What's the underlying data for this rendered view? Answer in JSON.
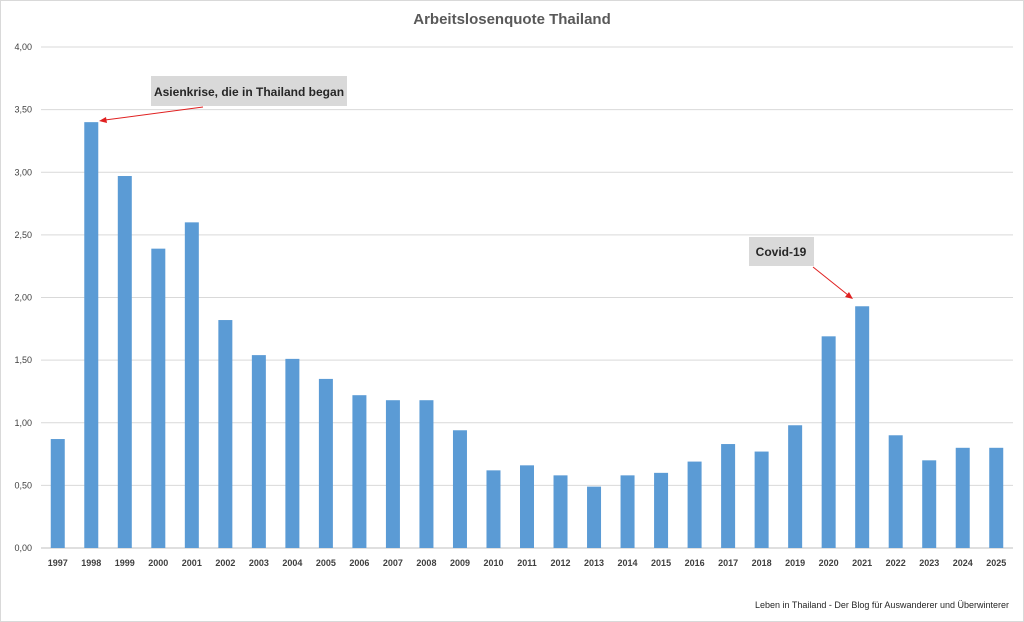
{
  "chart_data": {
    "type": "bar",
    "title": "Arbeitslosenquote Thailand",
    "xlabel": "",
    "ylabel": "",
    "ylim": [
      0,
      4
    ],
    "yticks": [
      "0,00",
      "0,50",
      "1,00",
      "1,50",
      "2,00",
      "2,50",
      "3,00",
      "3,50",
      "4,00"
    ],
    "grid": true,
    "legend": "none",
    "bar_color": "#5b9bd5",
    "categories": [
      "1997",
      "1998",
      "1999",
      "2000",
      "2001",
      "2002",
      "2003",
      "2004",
      "2005",
      "2006",
      "2007",
      "2008",
      "2009",
      "2010",
      "2011",
      "2012",
      "2013",
      "2014",
      "2015",
      "2016",
      "2017",
      "2018",
      "2019",
      "2020",
      "2021",
      "2022",
      "2023",
      "2024",
      "2025"
    ],
    "values": [
      0.87,
      3.4,
      2.97,
      2.39,
      2.6,
      1.82,
      1.54,
      1.51,
      1.35,
      1.22,
      1.18,
      1.18,
      0.94,
      0.62,
      0.66,
      0.58,
      0.49,
      0.58,
      0.6,
      0.69,
      0.83,
      0.77,
      0.98,
      1.69,
      1.93,
      0.9,
      0.7,
      0.8,
      0.8
    ],
    "annotations": [
      {
        "text": "Asienkrise, die in Thailand began",
        "category": "1998"
      },
      {
        "text": "Covid-19",
        "category": "2021"
      }
    ]
  },
  "footer": "Leben in Thailand - Der Blog für Auswanderer und Überwinterer"
}
